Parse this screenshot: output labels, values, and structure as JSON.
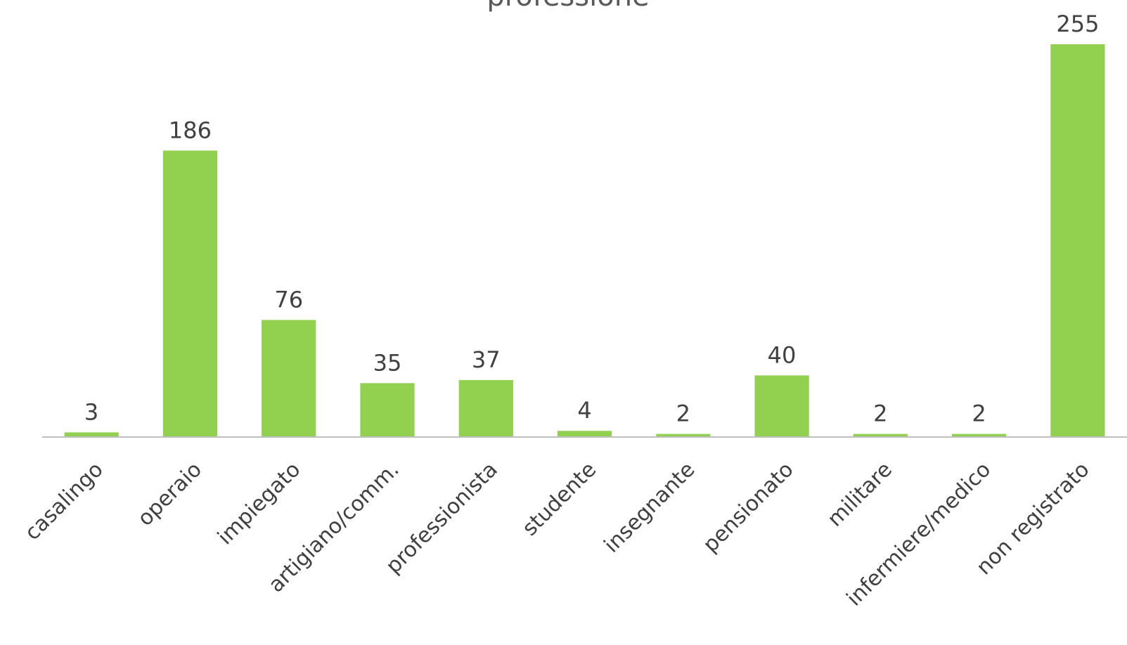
{
  "chart_data": {
    "type": "bar",
    "title": "professione",
    "xlabel": "",
    "ylabel": "",
    "categories": [
      "casalingo",
      "operaio",
      "impiegato",
      "artigiano/comm.",
      "professionista",
      "studente",
      "insegnante",
      "pensionato",
      "militare",
      "infermiere/medico",
      "non registrato"
    ],
    "values": [
      3,
      186,
      76,
      35,
      37,
      4,
      2,
      40,
      2,
      2,
      255
    ],
    "ylim": [
      0,
      255
    ],
    "grid": false,
    "legend": "none",
    "data_labels": true,
    "colors": {
      "bar": "#92d050",
      "axis": "#bfbfbf",
      "text": "#404040",
      "title": "#595959"
    }
  }
}
